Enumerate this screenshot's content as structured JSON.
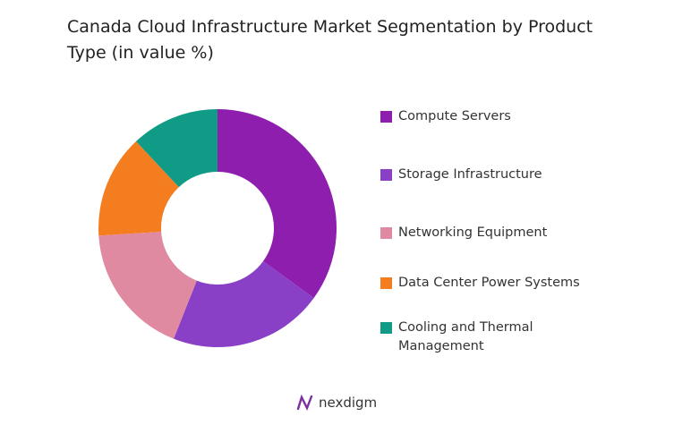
{
  "chart_data": {
    "type": "pie",
    "title": "Canada Cloud Infrastructure Market Segmentation by Product Type (in value %)",
    "categories": [
      "Compute Servers",
      "Storage Infrastructure",
      "Networking Equipment",
      "Data Center Power Systems",
      "Cooling and Thermal Management"
    ],
    "values": [
      35,
      21,
      18,
      14,
      12
    ],
    "colors": [
      "#8e1fae",
      "#8a40c6",
      "#e08aa2",
      "#f47d20",
      "#0f9b85"
    ],
    "donut": true
  },
  "footer": "nexdigm"
}
